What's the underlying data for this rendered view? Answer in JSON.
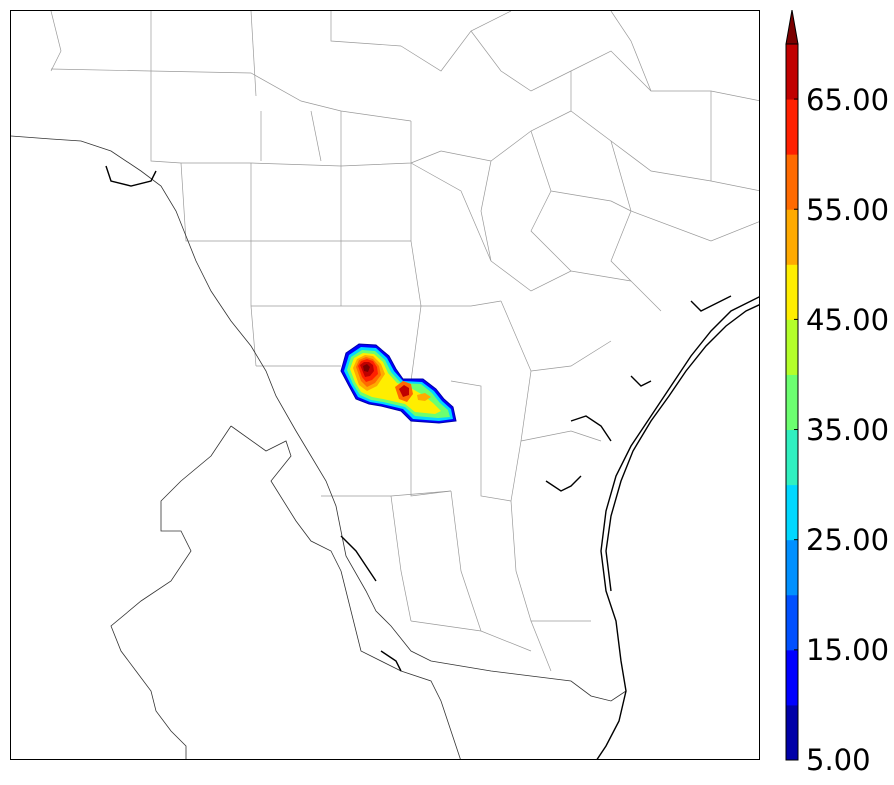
{
  "colorbar": {
    "tick_labels": [
      "65.00",
      "55.00",
      "45.00",
      "35.00",
      "25.00",
      "15.00",
      "5.00"
    ],
    "levels": [
      5,
      10,
      15,
      20,
      25,
      30,
      35,
      40,
      45,
      50,
      55,
      60,
      65,
      70
    ],
    "colors": [
      "#0000a8",
      "#0000ff",
      "#0050ff",
      "#0090ff",
      "#00d8ff",
      "#30f0c0",
      "#6cff70",
      "#b4ff2a",
      "#ffee00",
      "#ffaa00",
      "#ff6a00",
      "#ff2000",
      "#c00000",
      "#7a0000"
    ],
    "extend": "max"
  },
  "map": {
    "coastline_color": "#000000",
    "county_line_color": "#9a9a9a"
  }
}
